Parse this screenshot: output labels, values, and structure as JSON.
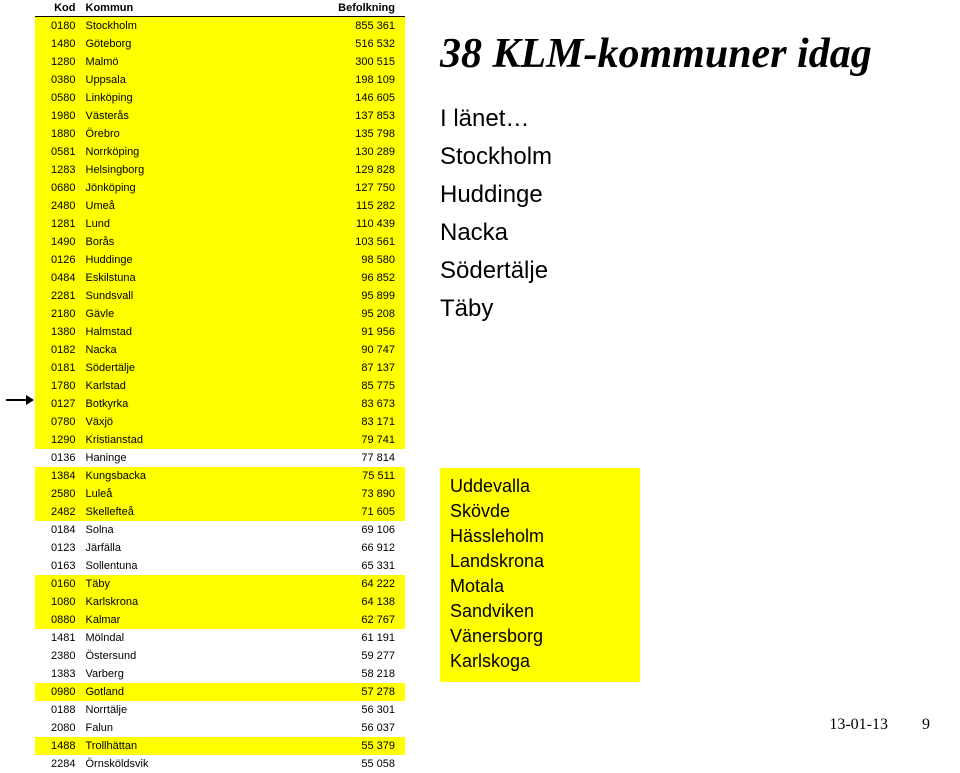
{
  "colors": {
    "highlight_row": "#ffff00",
    "normal_row": "#ffffff",
    "wave_red": "#d9414a",
    "wave_orange": "#e88b2e",
    "wave_green": "#6fa84f",
    "wave_blue": "#3b7bbf",
    "divider": "#c0c8d0"
  },
  "table": {
    "headers": {
      "kod": "Kod",
      "kommun": "Kommun",
      "befolkning": "Befolkning"
    },
    "rows": [
      {
        "kod": "0180",
        "kommun": "Stockholm",
        "bef": "855 361",
        "hl": true
      },
      {
        "kod": "1480",
        "kommun": "Göteborg",
        "bef": "516 532",
        "hl": true
      },
      {
        "kod": "1280",
        "kommun": "Malmö",
        "bef": "300 515",
        "hl": true
      },
      {
        "kod": "0380",
        "kommun": "Uppsala",
        "bef": "198 109",
        "hl": true
      },
      {
        "kod": "0580",
        "kommun": "Linköping",
        "bef": "146 605",
        "hl": true
      },
      {
        "kod": "1980",
        "kommun": "Västerås",
        "bef": "137 853",
        "hl": true
      },
      {
        "kod": "1880",
        "kommun": "Örebro",
        "bef": "135 798",
        "hl": true
      },
      {
        "kod": "0581",
        "kommun": "Norrköping",
        "bef": "130 289",
        "hl": true
      },
      {
        "kod": "1283",
        "kommun": "Helsingborg",
        "bef": "129 828",
        "hl": true
      },
      {
        "kod": "0680",
        "kommun": "Jönköping",
        "bef": "127 750",
        "hl": true
      },
      {
        "kod": "2480",
        "kommun": "Umeå",
        "bef": "115 282",
        "hl": true
      },
      {
        "kod": "1281",
        "kommun": "Lund",
        "bef": "110 439",
        "hl": true
      },
      {
        "kod": "1490",
        "kommun": "Borås",
        "bef": "103 561",
        "hl": true
      },
      {
        "kod": "0126",
        "kommun": "Huddinge",
        "bef": "98 580",
        "hl": true
      },
      {
        "kod": "0484",
        "kommun": "Eskilstuna",
        "bef": "96 852",
        "hl": true
      },
      {
        "kod": "2281",
        "kommun": "Sundsvall",
        "bef": "95 899",
        "hl": true
      },
      {
        "kod": "2180",
        "kommun": "Gävle",
        "bef": "95 208",
        "hl": true
      },
      {
        "kod": "1380",
        "kommun": "Halmstad",
        "bef": "91 956",
        "hl": true
      },
      {
        "kod": "0182",
        "kommun": "Nacka",
        "bef": "90 747",
        "hl": true
      },
      {
        "kod": "0181",
        "kommun": "Södertälje",
        "bef": "87 137",
        "hl": true
      },
      {
        "kod": "1780",
        "kommun": "Karlstad",
        "bef": "85 775",
        "hl": true
      },
      {
        "kod": "0127",
        "kommun": "Botkyrka",
        "bef": "83 673",
        "hl": true
      },
      {
        "kod": "0780",
        "kommun": "Växjö",
        "bef": "83 171",
        "hl": true
      },
      {
        "kod": "1290",
        "kommun": "Kristianstad",
        "bef": "79 741",
        "hl": true
      },
      {
        "kod": "0136",
        "kommun": "Haninge",
        "bef": "77 814",
        "hl": false
      },
      {
        "kod": "1384",
        "kommun": "Kungsbacka",
        "bef": "75 511",
        "hl": true
      },
      {
        "kod": "2580",
        "kommun": "Luleå",
        "bef": "73 890",
        "hl": true
      },
      {
        "kod": "2482",
        "kommun": "Skellefteå",
        "bef": "71 605",
        "hl": true
      },
      {
        "kod": "0184",
        "kommun": "Solna",
        "bef": "69 106",
        "hl": false
      },
      {
        "kod": "0123",
        "kommun": "Järfälla",
        "bef": "66 912",
        "hl": false
      },
      {
        "kod": "0163",
        "kommun": "Sollentuna",
        "bef": "65 331",
        "hl": false
      },
      {
        "kod": "0160",
        "kommun": "Täby",
        "bef": "64 222",
        "hl": true
      },
      {
        "kod": "1080",
        "kommun": "Karlskrona",
        "bef": "64 138",
        "hl": true
      },
      {
        "kod": "0880",
        "kommun": "Kalmar",
        "bef": "62 767",
        "hl": true
      },
      {
        "kod": "1481",
        "kommun": "Mölndal",
        "bef": "61 191",
        "hl": false
      },
      {
        "kod": "2380",
        "kommun": "Östersund",
        "bef": "59 277",
        "hl": false
      },
      {
        "kod": "1383",
        "kommun": "Varberg",
        "bef": "58 218",
        "hl": false
      },
      {
        "kod": "0980",
        "kommun": "Gotland",
        "bef": "57 278",
        "hl": true
      },
      {
        "kod": "0188",
        "kommun": "Norrtälje",
        "bef": "56 301",
        "hl": false
      },
      {
        "kod": "2080",
        "kommun": "Falun",
        "bef": "56 037",
        "hl": false
      },
      {
        "kod": "1488",
        "kommun": "Trollhättan",
        "bef": "55 379",
        "hl": true
      },
      {
        "kod": "2284",
        "kommun": "Örnsköldsvik",
        "bef": "55 058",
        "hl": false
      }
    ]
  },
  "title": "38 KLM-kommuner idag",
  "list": {
    "intro": "I länet…",
    "items": [
      "Stockholm",
      "Huddinge",
      "Nacka",
      "Södertälje",
      "Täby"
    ]
  },
  "yellowbox": {
    "items": [
      "Uddevalla",
      "Skövde",
      "Hässleholm",
      "Landskrona",
      "Motala",
      "Sandviken",
      "Vänersborg",
      "Karlskoga"
    ]
  },
  "footer": {
    "date": "13-01-13",
    "page": "9"
  }
}
